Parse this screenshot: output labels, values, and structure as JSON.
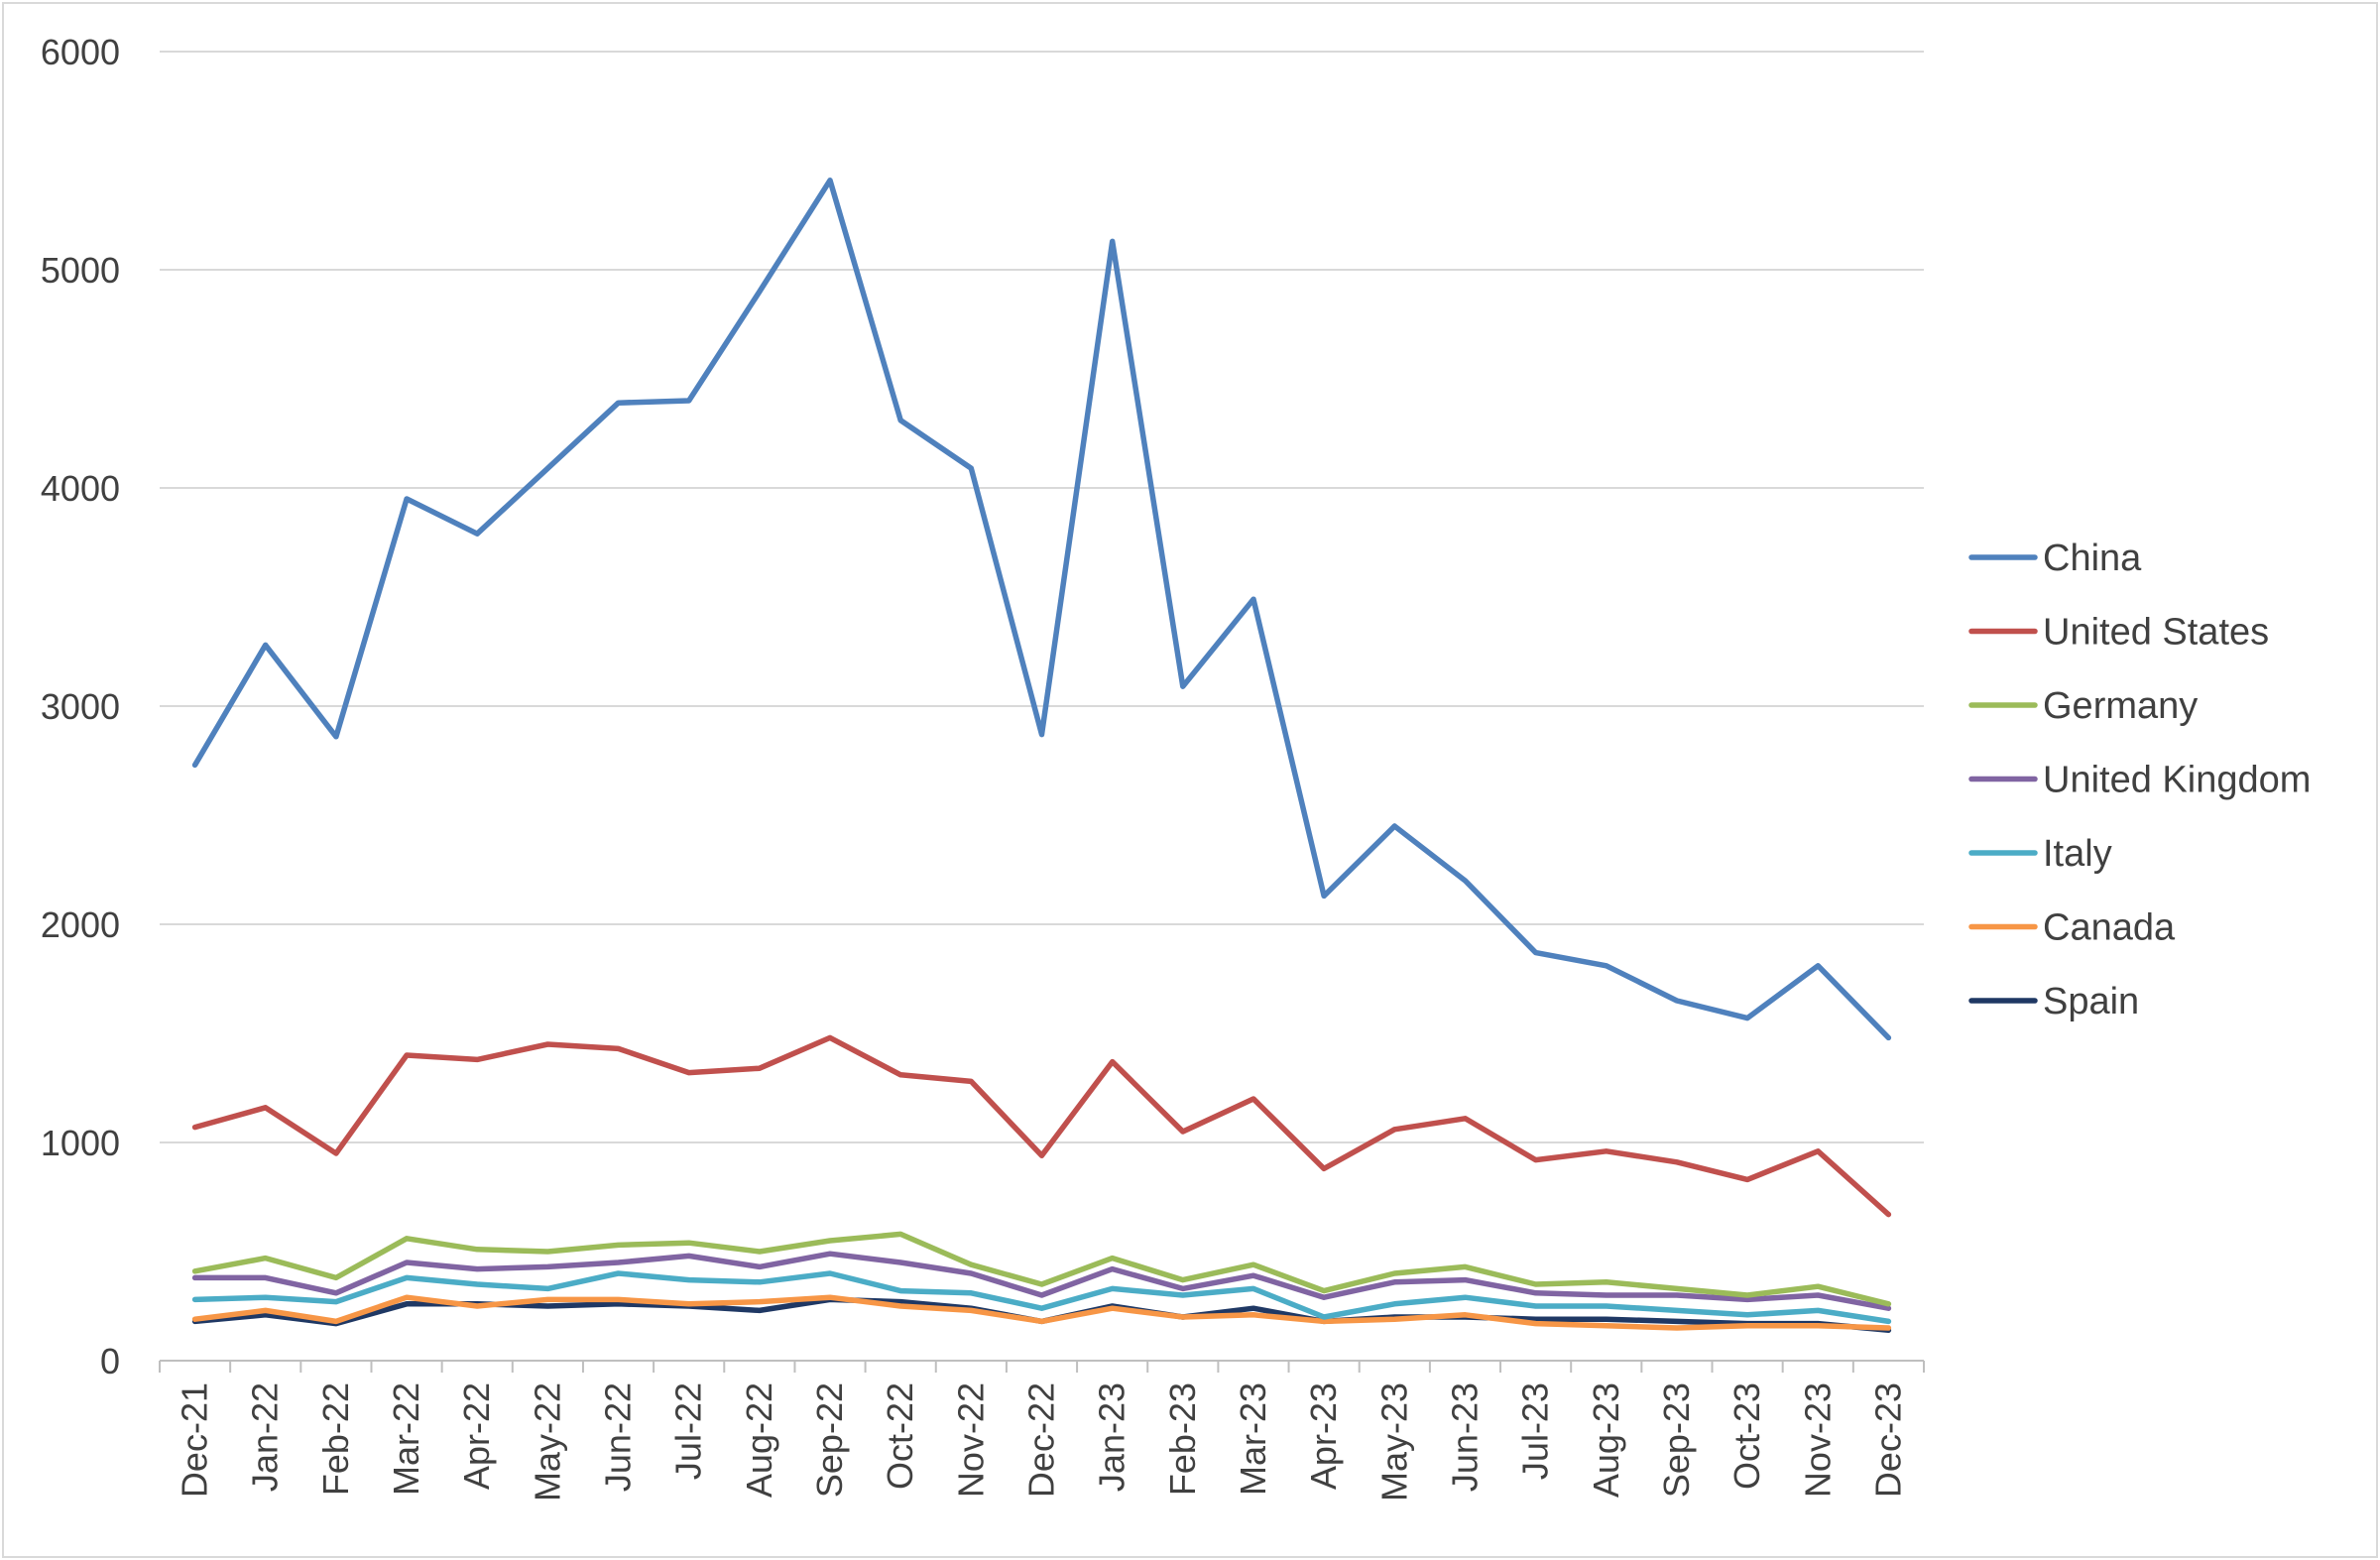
{
  "chart_data": {
    "type": "line",
    "title": "",
    "xlabel": "",
    "ylabel": "",
    "ylim": [
      0,
      6000
    ],
    "yticks": [
      0,
      1000,
      2000,
      3000,
      4000,
      5000,
      6000
    ],
    "grid": true,
    "legend_position": "right",
    "categories": [
      "Dec-21",
      "Jan-22",
      "Feb-22",
      "Mar-22",
      "Apr-22",
      "May-22",
      "Jun-22",
      "Jul-22",
      "Aug-22",
      "Sep-22",
      "Oct-22",
      "Nov-22",
      "Dec-22",
      "Jan-23",
      "Feb-23",
      "Mar-23",
      "Apr-23",
      "May-23",
      "Jun-23",
      "Jul-23",
      "Aug-23",
      "Sep-23",
      "Oct-23",
      "Nov-23",
      "Dec-23"
    ],
    "series": [
      {
        "name": "China",
        "color": "#4F81BD",
        "values": [
          2730,
          3280,
          2860,
          3950,
          3790,
          4090,
          4390,
          4400,
          4900,
          5410,
          4310,
          4090,
          2870,
          5130,
          3090,
          3490,
          2130,
          2450,
          2200,
          1870,
          1810,
          1650,
          1570,
          1810,
          1480
        ]
      },
      {
        "name": "United States",
        "color": "#C0504D",
        "values": [
          1070,
          1160,
          950,
          1400,
          1380,
          1450,
          1430,
          1320,
          1340,
          1480,
          1310,
          1280,
          940,
          1370,
          1050,
          1200,
          880,
          1060,
          1110,
          920,
          960,
          910,
          830,
          960,
          670
        ]
      },
      {
        "name": "Germany",
        "color": "#9BBB59",
        "values": [
          410,
          470,
          380,
          560,
          510,
          500,
          530,
          540,
          500,
          550,
          580,
          440,
          350,
          470,
          370,
          440,
          320,
          400,
          430,
          350,
          360,
          330,
          300,
          340,
          260
        ]
      },
      {
        "name": "United Kingdom",
        "color": "#8064A2",
        "values": [
          380,
          380,
          310,
          450,
          420,
          430,
          450,
          480,
          430,
          490,
          450,
          400,
          300,
          420,
          330,
          390,
          290,
          360,
          370,
          310,
          300,
          300,
          280,
          300,
          240
        ]
      },
      {
        "name": "Italy",
        "color": "#4BACC6",
        "values": [
          280,
          290,
          270,
          380,
          350,
          330,
          400,
          370,
          360,
          400,
          320,
          310,
          240,
          330,
          300,
          330,
          200,
          260,
          290,
          250,
          250,
          230,
          210,
          230,
          180
        ]
      },
      {
        "name": "Canada",
        "color": "#F79646",
        "values": [
          190,
          230,
          180,
          290,
          250,
          280,
          280,
          260,
          270,
          290,
          250,
          230,
          180,
          240,
          200,
          210,
          180,
          190,
          210,
          170,
          160,
          150,
          160,
          160,
          150
        ]
      },
      {
        "name": "Spain",
        "color": "#1F3864",
        "values": [
          180,
          210,
          170,
          260,
          260,
          250,
          260,
          250,
          230,
          280,
          270,
          240,
          180,
          250,
          200,
          240,
          180,
          200,
          200,
          190,
          190,
          180,
          170,
          170,
          140
        ]
      }
    ]
  }
}
